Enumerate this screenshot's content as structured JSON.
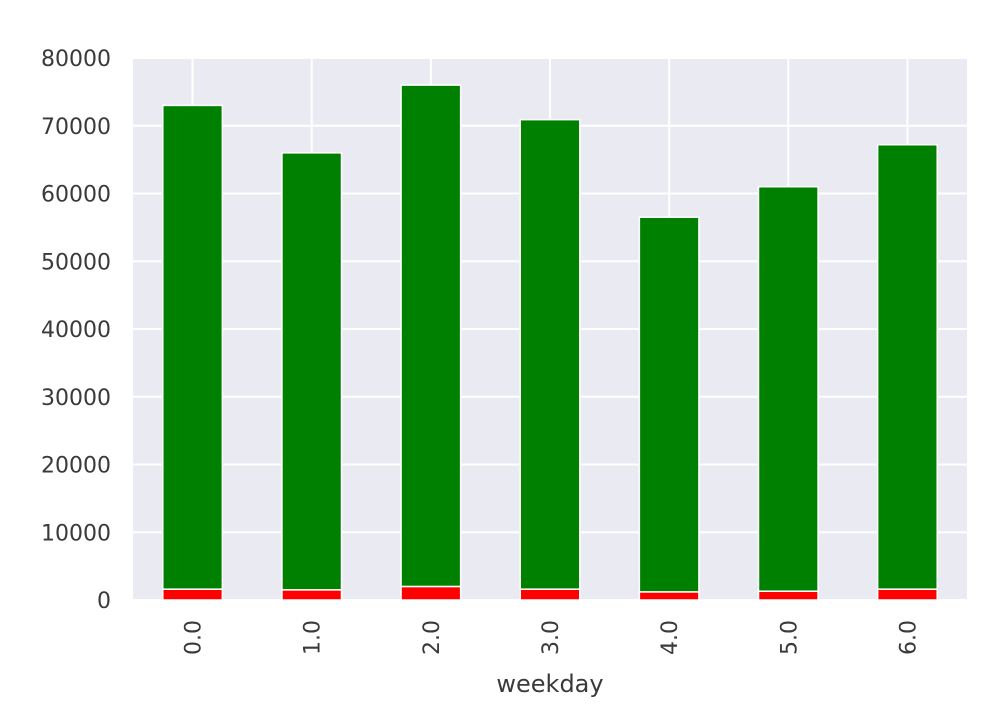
{
  "chart_data": {
    "type": "bar",
    "stacked": true,
    "categories": [
      "0.0",
      "1.0",
      "2.0",
      "3.0",
      "4.0",
      "5.0",
      "6.0"
    ],
    "series": [
      {
        "values": [
          1600,
          1500,
          2000,
          1600,
          1200,
          1300,
          1600
        ],
        "color": "#ff0000"
      },
      {
        "values": [
          71400,
          64500,
          74000,
          69300,
          55300,
          59700,
          65600
        ],
        "color": "#008000"
      }
    ],
    "xlabel": "weekday",
    "ylabel": "",
    "ylim": [
      0,
      80000
    ],
    "yticks": [
      0,
      10000,
      20000,
      30000,
      40000,
      50000,
      60000,
      70000,
      80000
    ],
    "grid": true,
    "background": "#eaeaf2",
    "grid_color": "#ffffff"
  }
}
